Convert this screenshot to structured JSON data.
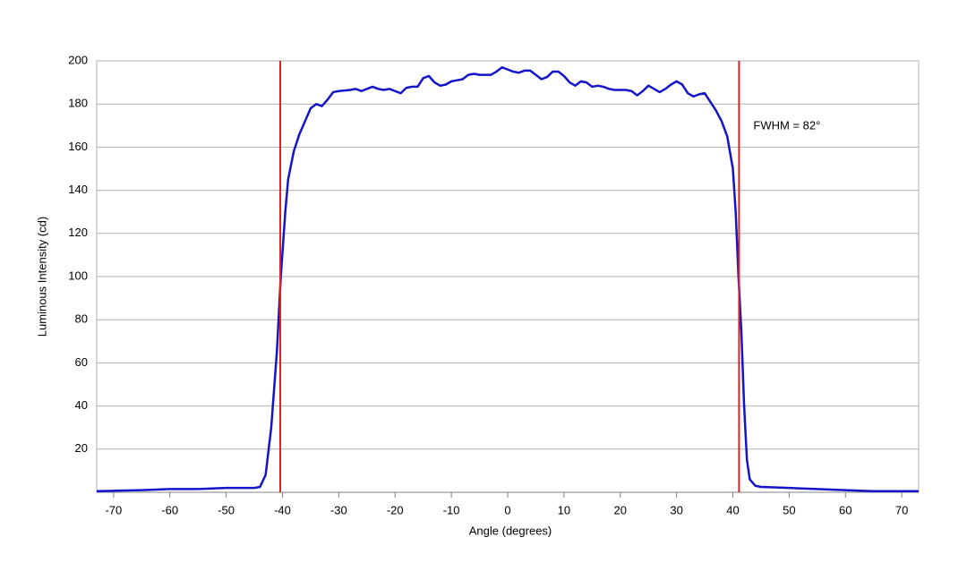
{
  "chart_data": {
    "type": "line",
    "x_label": "Angle (degrees)",
    "y_label": "Luminous Intensity (cd)",
    "annotation": "FWHM = 82°",
    "x": [
      -73,
      -70,
      -65,
      -60,
      -55,
      -50,
      -45,
      -44,
      -43,
      -42,
      -41,
      -40.3,
      -39.5,
      -39,
      -38,
      -37,
      -36,
      -35,
      -34,
      -33,
      -32,
      -31,
      -30,
      -28,
      -27,
      -26,
      -25,
      -24,
      -23,
      -22,
      -21,
      -20,
      -19,
      -18,
      -17,
      -16,
      -15,
      -14,
      -13,
      -12,
      -11,
      -10,
      -9,
      -8,
      -7,
      -6,
      -5,
      -3,
      -2,
      -1,
      0,
      1,
      2,
      3,
      4,
      5,
      6,
      7,
      8,
      9,
      10,
      11,
      12,
      13,
      14,
      15,
      16,
      17,
      18,
      19,
      20,
      21,
      22,
      23,
      24,
      25,
      26,
      27,
      28,
      29,
      30,
      31,
      32,
      33,
      34,
      35,
      36,
      37,
      38,
      39,
      40,
      40.5,
      41,
      41.5,
      42,
      42.5,
      43,
      44,
      45,
      50,
      55,
      60,
      65,
      70,
      73
    ],
    "series": [
      {
        "name": "Luminous Intensity",
        "color": "#1414c8",
        "values": [
          0.5,
          0.7,
          1,
          1.5,
          1.5,
          2,
          2,
          2.5,
          8,
          30,
          65,
          100,
          130,
          145,
          158,
          166,
          172,
          178,
          180,
          179,
          182,
          185.5,
          186,
          186.5,
          187,
          186,
          187,
          188,
          187,
          186.5,
          187,
          186,
          185,
          187.5,
          188,
          188,
          192,
          193,
          190,
          188.5,
          189,
          190.5,
          191,
          191.5,
          193.5,
          194,
          193.5,
          193.5,
          195,
          197,
          196,
          195,
          194.5,
          195.5,
          195.5,
          193.5,
          191.5,
          192.5,
          195,
          195,
          193,
          190,
          188.5,
          190.5,
          190,
          188,
          188.5,
          188,
          187,
          186.5,
          186.5,
          186.5,
          186,
          184,
          186,
          188.5,
          187,
          185.5,
          187,
          189,
          190.5,
          189,
          185,
          183.5,
          184.5,
          185,
          181,
          177,
          172,
          165,
          150,
          130,
          100,
          75,
          40,
          15,
          6,
          3,
          2.5,
          2,
          1.5,
          1,
          0.5,
          0.5,
          0.5
        ]
      }
    ],
    "vlines": [
      -40.4,
      41.1
    ],
    "vline_color": "#e02020",
    "xlim": [
      -73,
      73
    ],
    "ylim": [
      0,
      200
    ],
    "xticks": [
      -70,
      -60,
      -50,
      -40,
      -30,
      -20,
      -10,
      0,
      10,
      20,
      30,
      40,
      50,
      60,
      70
    ],
    "yticks": [
      20,
      40,
      60,
      80,
      100,
      120,
      140,
      160,
      180,
      200
    ],
    "grid": true
  }
}
